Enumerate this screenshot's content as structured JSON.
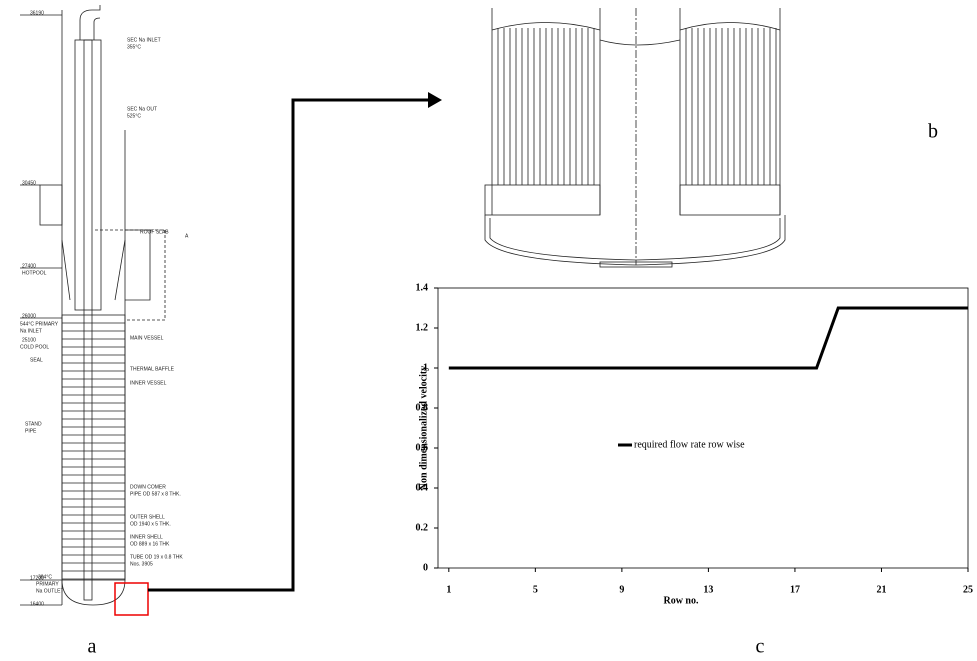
{
  "panel_labels": [
    "a",
    "b",
    "c"
  ],
  "drawing_a": {
    "annotations": [
      "36190",
      "SEC Na INLET",
      "355°C",
      "SEC Na OUT",
      "525°C",
      "30450",
      "ROOF SLAB",
      "A",
      "27400",
      "HOTPOOL",
      "26000",
      "544°C PRIMARY",
      "Na INLET",
      "25100",
      "COLD POOL",
      "SEAL",
      "MAIN VESSEL",
      "THERMAL BAFFLE",
      "INNER VESSEL",
      "STAND",
      "PIPE",
      "DOWN COMER",
      "PIPE OD 587 x 8 THK.",
      "OUTER SHELL",
      "OD 1940 x 5 THK.",
      "INNER SHELL",
      "OD 889 x 16 THK",
      "394°C",
      "PRIMARY",
      "Na OUTLET",
      "TUBE OD 19 x 0.8 THK",
      "Nos. 3905",
      "17200",
      "16400"
    ]
  },
  "chart_data": {
    "type": "line",
    "x_label": "Row no.",
    "y_label": "Non dimensionalized velocity",
    "x": [
      1,
      2,
      3,
      4,
      5,
      6,
      7,
      8,
      9,
      10,
      11,
      12,
      13,
      14,
      15,
      16,
      17,
      18,
      19,
      20,
      21,
      22,
      23,
      24,
      25
    ],
    "series": [
      {
        "name": "required flow rate row wise",
        "color": "#000000",
        "values": [
          1,
          1,
          1,
          1,
          1,
          1,
          1,
          1,
          1,
          1,
          1,
          1,
          1,
          1,
          1,
          1,
          1,
          1,
          1.3,
          1.3,
          1.3,
          1.3,
          1.3,
          1.3,
          1.3
        ]
      }
    ],
    "xlim": [
      0.5,
      25
    ],
    "xticks": [
      1,
      5,
      9,
      13,
      17,
      21,
      25
    ],
    "ylim": [
      0,
      1.4
    ],
    "yticks": [
      0,
      0.2,
      0.4,
      0.6,
      0.8,
      1,
      1.2,
      1.4
    ],
    "grid": false
  }
}
